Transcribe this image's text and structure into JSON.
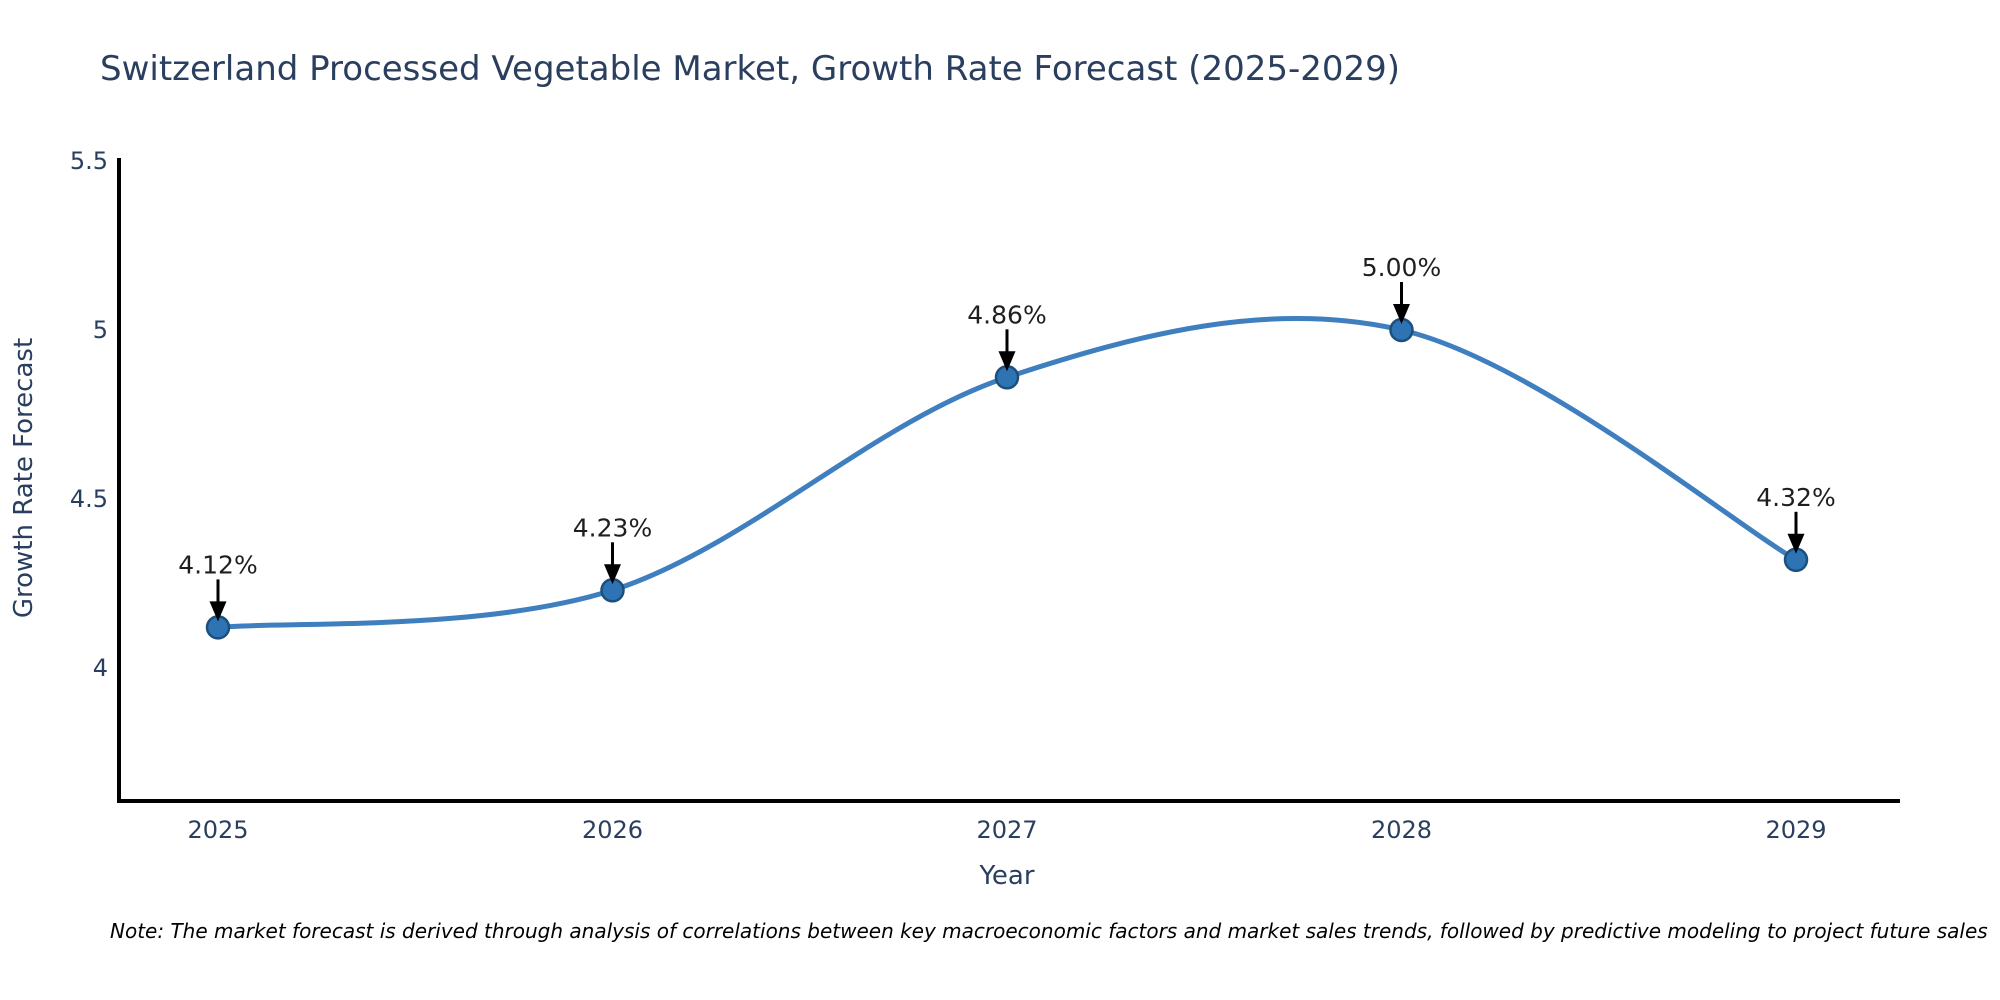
{
  "chart_data": {
    "type": "line",
    "line_shape": "spline",
    "title": "Switzerland Processed Vegetable Market, Growth Rate Forecast (2025-2029)",
    "xlabel": "Year",
    "ylabel": "Growth Rate Forecast",
    "x": [
      2025,
      2026,
      2027,
      2028,
      2029
    ],
    "x_tick_labels": [
      "2025",
      "2026",
      "2027",
      "2028",
      "2029"
    ],
    "series": [
      {
        "name": "Growth Rate Forecast",
        "values": [
          4.12,
          4.23,
          4.86,
          5.0,
          4.32
        ],
        "point_labels": [
          "4.12%",
          "4.23%",
          "4.86%",
          "5.00%",
          "4.32%"
        ]
      }
    ],
    "yticks": [
      4,
      4.5,
      5,
      5.5
    ],
    "ytick_labels": [
      "4",
      "4.5",
      "5",
      "5.5"
    ],
    "ylim": [
      3.6,
      5.5
    ],
    "grid": false,
    "legend_position": "none",
    "annotations_have_arrows": true,
    "colors": {
      "line": "#3f7fbf",
      "marker": "#2e74b5",
      "marker_edge": "#1d4f7c",
      "arrow": "#000000",
      "title_text": "#2a3f5f",
      "tick_text": "#2a3f5f",
      "annotation_text": "#1f1f1f",
      "axis_spine": "#000000",
      "background": "#ffffff"
    }
  },
  "note": "Note: The market forecast is derived through analysis of correlations between key macroeconomic factors and market sales trends, followed by predictive modeling to project future sales"
}
